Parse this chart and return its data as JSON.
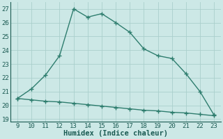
{
  "xlabel": "Humidex (Indice chaleur)",
  "x_values": [
    9,
    10,
    11,
    12,
    13,
    14,
    15,
    16,
    17,
    18,
    19,
    20,
    21,
    22,
    23
  ],
  "y_line1": [
    20.5,
    21.2,
    22.2,
    23.6,
    27.0,
    26.4,
    26.65,
    26.0,
    25.3,
    24.1,
    23.6,
    23.4,
    22.3,
    21.0,
    19.3
  ],
  "y_line2": [
    20.5,
    20.4,
    20.3,
    20.25,
    20.15,
    20.05,
    19.95,
    19.85,
    19.75,
    19.65,
    19.6,
    19.5,
    19.45,
    19.35,
    19.25
  ],
  "line_color": "#2e7d6e",
  "bg_color": "#cce8e6",
  "grid_color": "#aacfcc",
  "xlim": [
    8.5,
    23.5
  ],
  "ylim": [
    18.8,
    27.5
  ],
  "xticks": [
    9,
    10,
    11,
    12,
    13,
    14,
    15,
    16,
    17,
    18,
    19,
    20,
    21,
    22,
    23
  ],
  "yticks": [
    19,
    20,
    21,
    22,
    23,
    24,
    25,
    26,
    27
  ],
  "marker": "+",
  "markersize": 4,
  "linewidth": 1.0,
  "tick_fontsize": 6.5,
  "xlabel_fontsize": 7.5
}
